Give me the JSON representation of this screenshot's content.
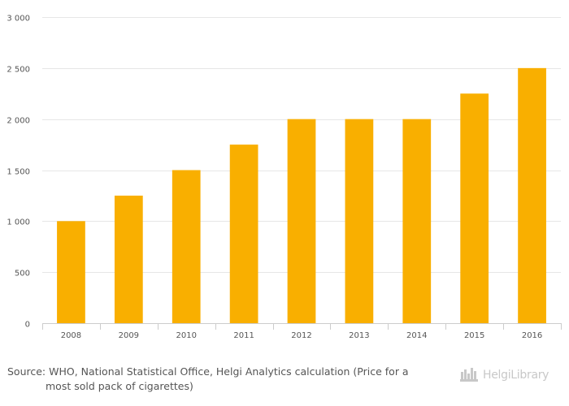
{
  "chart_data": {
    "type": "bar",
    "categories": [
      "2008",
      "2009",
      "2010",
      "2011",
      "2012",
      "2013",
      "2014",
      "2015",
      "2016"
    ],
    "values": [
      1000,
      1250,
      1500,
      1750,
      2000,
      2000,
      2000,
      2250,
      2500
    ],
    "y_ticks": [
      "0",
      "500",
      "1 000",
      "1 500",
      "2 000",
      "2 500",
      "3 000"
    ],
    "ylim": [
      0,
      3000
    ],
    "grid": true,
    "bar_color": "#F9AF00"
  },
  "source": {
    "line1": "Source: WHO, National Statistical Office, Helgi Analytics calculation (Price for a",
    "line2": "most sold pack of cigarettes)"
  },
  "logo": {
    "text": "HelgiLibrary",
    "icon": "helgi-skyline-icon"
  }
}
